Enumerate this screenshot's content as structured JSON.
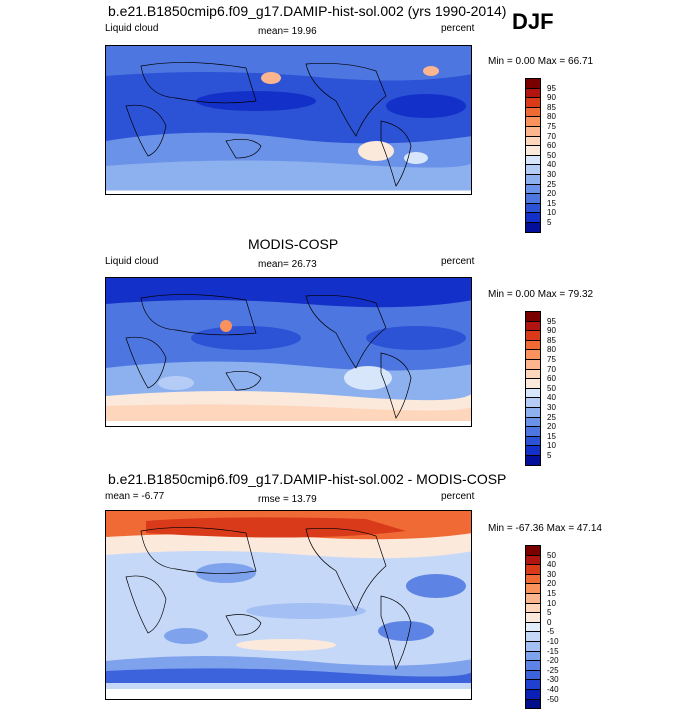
{
  "season": "DJF",
  "panels": [
    {
      "title": "b.e21.B1850cmip6.f09_g17.DAMIP-hist-sol.002 (yrs 1990-2014)",
      "left_label": "Liquid cloud",
      "center_label": "mean=  19.96",
      "right_label": "percent",
      "minmax": "Min =   0.00 Max =  66.71",
      "colorbar": {
        "colors": [
          "#7a0000",
          "#b01512",
          "#d93a1a",
          "#f06a35",
          "#f9925d",
          "#fbb690",
          "#fdd6bb",
          "#fbe9dc",
          "#d8e6fb",
          "#b5cdf6",
          "#8db0ef",
          "#6a92e8",
          "#4d76e1",
          "#2c52d6",
          "#1330c8",
          "#020f9a"
        ],
        "labels": [
          "95",
          "90",
          "85",
          "80",
          "75",
          "70",
          "60",
          "50",
          "40",
          "30",
          "25",
          "20",
          "15",
          "10",
          "5"
        ]
      }
    },
    {
      "title": "MODIS-COSP",
      "left_label": "Liquid cloud",
      "center_label": "mean=  26.73",
      "right_label": "percent",
      "minmax": "Min =   0.00 Max =  79.32",
      "colorbar": {
        "colors": [
          "#7a0000",
          "#b01512",
          "#d93a1a",
          "#f06a35",
          "#f9925d",
          "#fbb690",
          "#fdd6bb",
          "#fbe9dc",
          "#d8e6fb",
          "#b5cdf6",
          "#8db0ef",
          "#6a92e8",
          "#4d76e1",
          "#2c52d6",
          "#1330c8",
          "#020f9a"
        ],
        "labels": [
          "95",
          "90",
          "85",
          "80",
          "75",
          "70",
          "60",
          "50",
          "40",
          "30",
          "25",
          "20",
          "15",
          "10",
          "5"
        ]
      }
    },
    {
      "title": "b.e21.B1850cmip6.f09_g17.DAMIP-hist-sol.002 - MODIS-COSP",
      "left_label": "mean = -6.77",
      "center_label": "rmse =  13.79",
      "right_label": "percent",
      "minmax": "Min = -67.36 Max =  47.14",
      "colorbar": {
        "colors": [
          "#7a0000",
          "#b01512",
          "#d93a1a",
          "#f06a35",
          "#f9925d",
          "#fbb690",
          "#fdd6bb",
          "#fbe9dc",
          "#e3ecfb",
          "#c6d8f8",
          "#a3bff3",
          "#7fa2ec",
          "#5d83e4",
          "#3c62dc",
          "#2040cf",
          "#0a1fb6",
          "#020f8a"
        ],
        "labels": [
          "50",
          "40",
          "30",
          "20",
          "15",
          "10",
          "5",
          "0",
          "-5",
          "-10",
          "-15",
          "-20",
          "-25",
          "-30",
          "-40",
          "-50"
        ]
      }
    }
  ],
  "chart_data": [
    {
      "type": "heatmap",
      "title": "b.e21.B1850cmip6.f09_g17.DAMIP-hist-sol.002 (yrs 1990-2014)",
      "variable": "Liquid cloud",
      "units": "percent",
      "season": "DJF",
      "mean": 19.96,
      "min": 0.0,
      "max": 66.71,
      "levels": [
        5,
        10,
        15,
        20,
        25,
        30,
        40,
        50,
        60,
        70,
        75,
        80,
        85,
        90,
        95
      ]
    },
    {
      "type": "heatmap",
      "title": "MODIS-COSP",
      "variable": "Liquid cloud",
      "units": "percent",
      "season": "DJF",
      "mean": 26.73,
      "min": 0.0,
      "max": 79.32,
      "levels": [
        5,
        10,
        15,
        20,
        25,
        30,
        40,
        50,
        60,
        70,
        75,
        80,
        85,
        90,
        95
      ]
    },
    {
      "type": "heatmap",
      "title": "b.e21.B1850cmip6.f09_g17.DAMIP-hist-sol.002 - MODIS-COSP",
      "units": "percent",
      "season": "DJF",
      "mean": -6.77,
      "rmse": 13.79,
      "min": -67.36,
      "max": 47.14,
      "levels": [
        -50,
        -40,
        -30,
        -25,
        -20,
        -15,
        -10,
        -5,
        0,
        5,
        10,
        15,
        20,
        30,
        40,
        50
      ]
    }
  ]
}
